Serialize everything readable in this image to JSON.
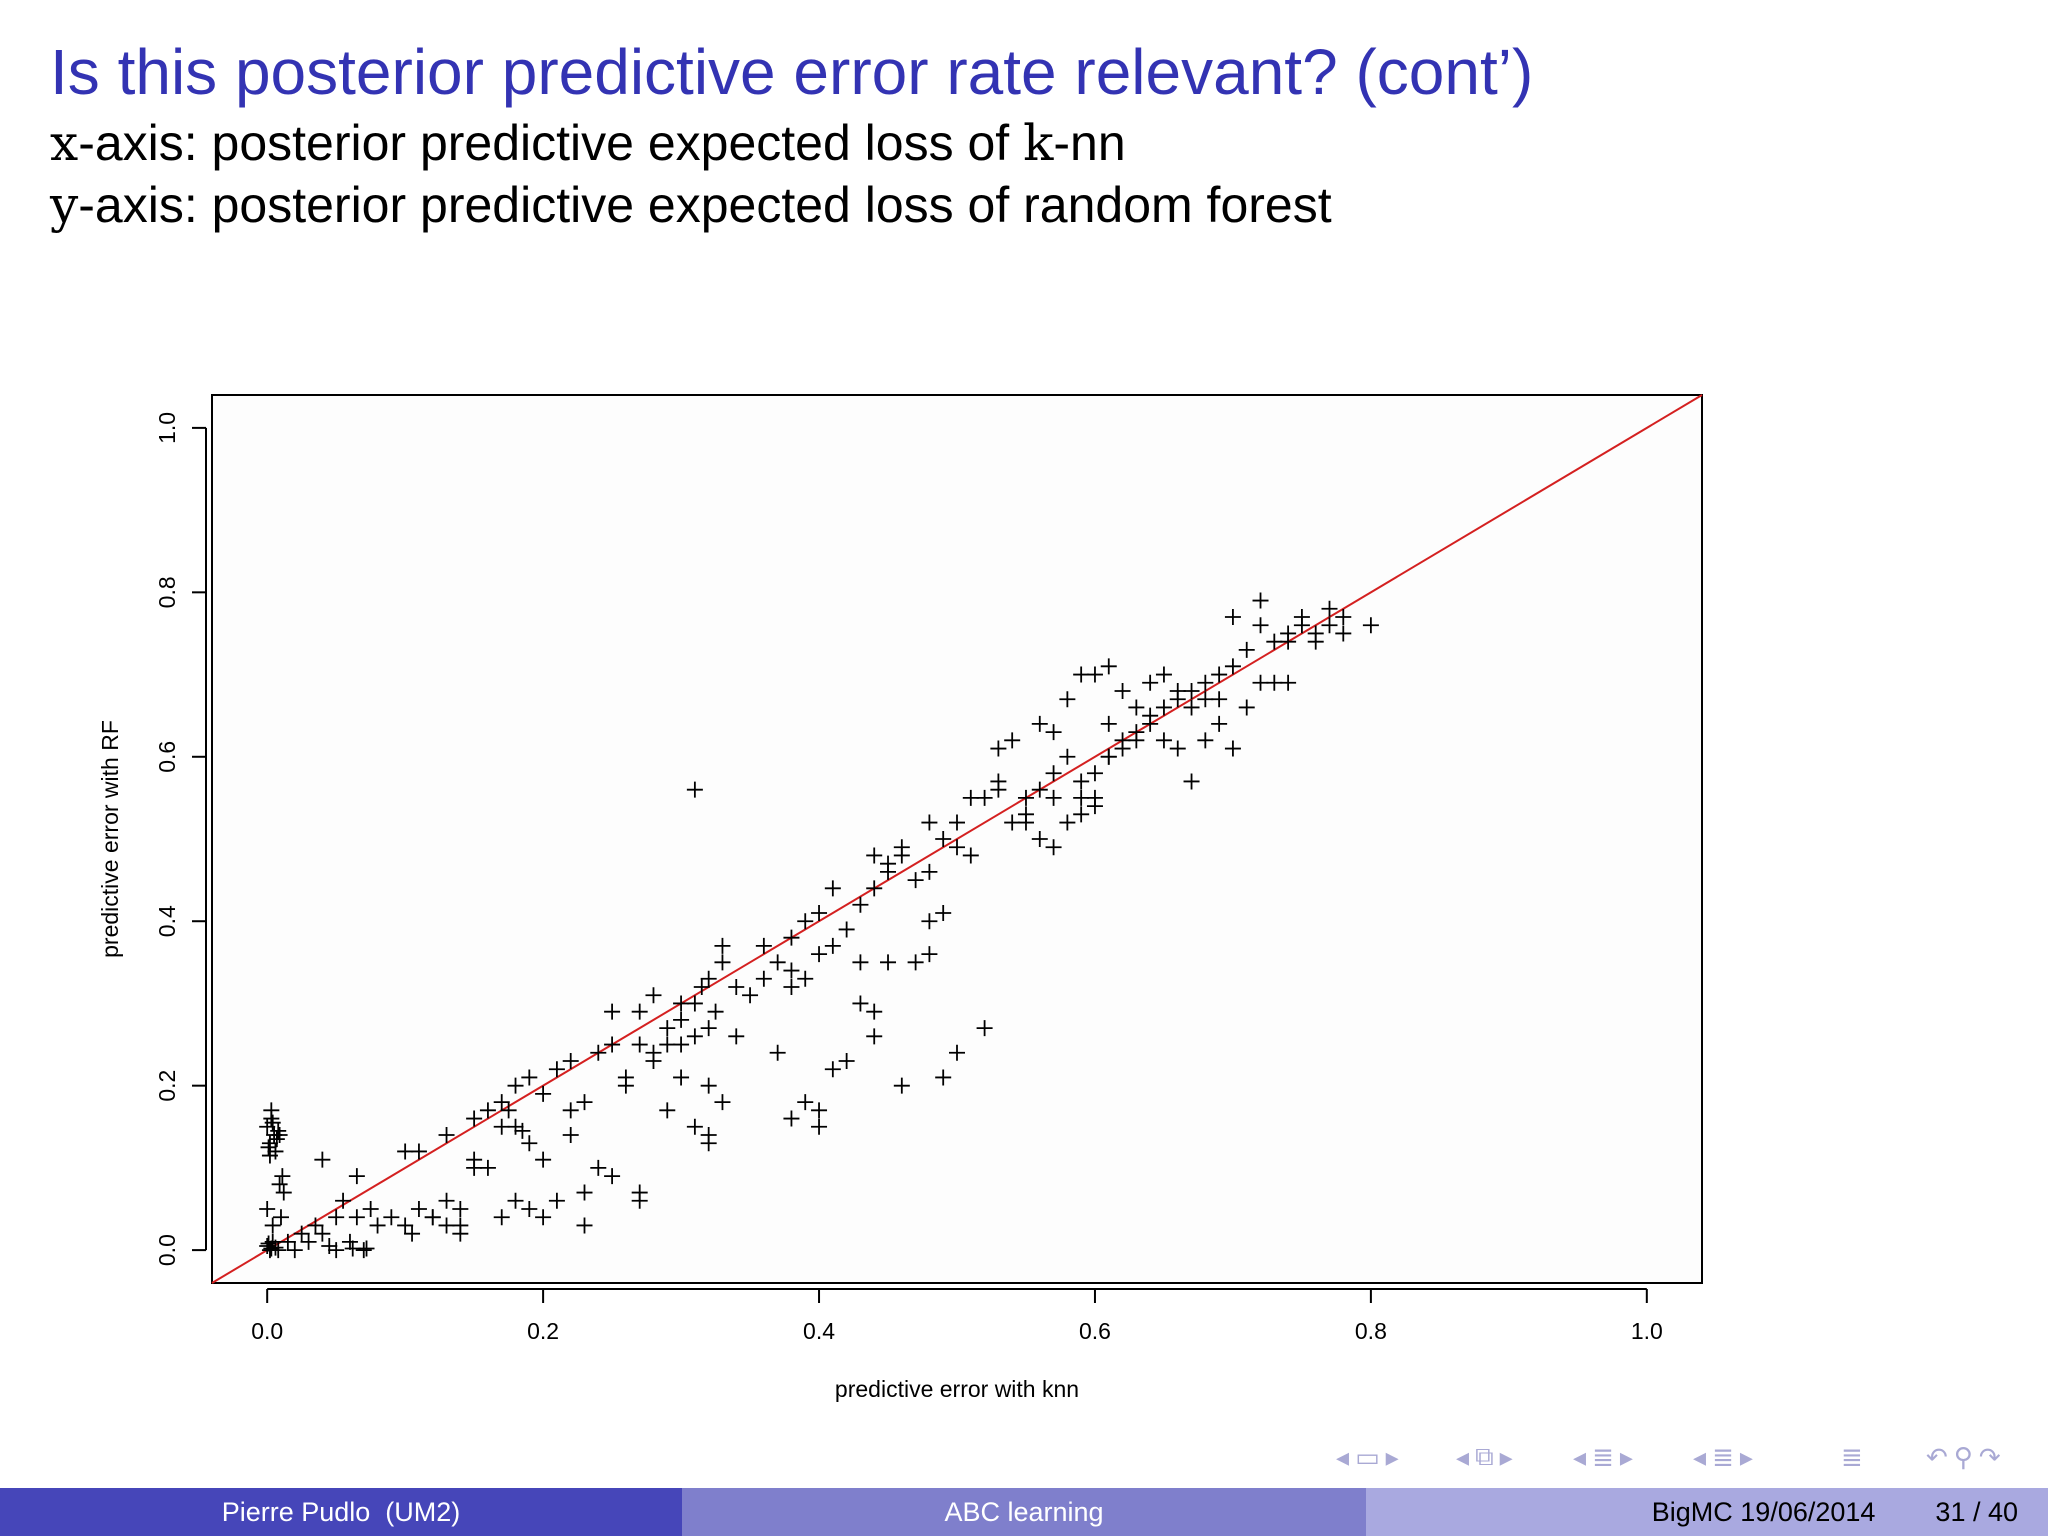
{
  "slide": {
    "title": "Is this posterior predictive error rate relevant? (cont’)",
    "line1_var": "x",
    "line1_text": "-axis: posterior predictive expected loss of ",
    "line1_k": "k",
    "line1_end": "-nn",
    "line2_var": "y",
    "line2_text": "-axis: posterior predictive expected loss of random forest"
  },
  "footer": {
    "author": "Pierre Pudlo  (UM2)",
    "talk": "ABC learning",
    "event": "BigMC 19/06/2014",
    "page": "31 / 40"
  },
  "nav": {
    "frame_icons": [
      "triangle-left-icon",
      "frame-icon",
      "triangle-right-icon"
    ],
    "subsection_icons": [
      "triangle-left-icon",
      "subsection-icon",
      "triangle-right-icon"
    ],
    "section_icons": [
      "triangle-left-icon",
      "section-icon",
      "triangle-right-icon"
    ],
    "subsubsection_icons": [
      "triangle-left-icon",
      "subsubsection-icon",
      "triangle-right-icon"
    ],
    "extra_icons": [
      "list-icon",
      "undo-icon",
      "search-icon",
      "redo-icon"
    ]
  },
  "chart_data": {
    "type": "scatter",
    "xlabel": "predictive error with knn",
    "ylabel": "predictive error with RF",
    "xlim": [
      -0.04,
      1.04
    ],
    "ylim": [
      -0.04,
      1.04
    ],
    "xticks": [
      "0.0",
      "0.2",
      "0.4",
      "0.6",
      "0.8",
      "1.0"
    ],
    "yticks": [
      "0.0",
      "0.2",
      "0.4",
      "0.6",
      "0.8",
      "1.0"
    ],
    "reference_line": {
      "from": [
        -0.04,
        -0.04
      ],
      "to": [
        1.04,
        1.04
      ],
      "color": "#d42020"
    },
    "marker": "+",
    "points": [
      [
        0.0,
        0.005
      ],
      [
        0.002,
        0.0
      ],
      [
        0.004,
        0.01
      ],
      [
        0.006,
        0.003
      ],
      [
        0.001,
        0.008
      ],
      [
        0.008,
        0.0
      ],
      [
        0.003,
        0.002
      ],
      [
        0.0,
        0.05
      ],
      [
        0.01,
        0.04
      ],
      [
        0.012,
        0.07
      ],
      [
        0.011,
        0.09
      ],
      [
        0.009,
        0.08
      ],
      [
        0.004,
        0.03
      ],
      [
        0.0,
        0.15
      ],
      [
        0.003,
        0.16
      ],
      [
        0.005,
        0.14
      ],
      [
        0.002,
        0.13
      ],
      [
        0.006,
        0.12
      ],
      [
        0.004,
        0.155
      ],
      [
        0.008,
        0.145
      ],
      [
        0.001,
        0.125
      ],
      [
        0.007,
        0.135
      ],
      [
        0.003,
        0.17
      ],
      [
        0.009,
        0.14
      ],
      [
        0.002,
        0.115
      ],
      [
        0.02,
        0.0
      ],
      [
        0.03,
        0.01
      ],
      [
        0.04,
        0.02
      ],
      [
        0.05,
        0.0
      ],
      [
        0.06,
        0.01
      ],
      [
        0.07,
        0.0
      ],
      [
        0.035,
        0.03
      ],
      [
        0.045,
        0.005
      ],
      [
        0.055,
        0.06
      ],
      [
        0.065,
        0.04
      ],
      [
        0.075,
        0.05
      ],
      [
        0.08,
        0.03
      ],
      [
        0.09,
        0.04
      ],
      [
        0.1,
        0.03
      ],
      [
        0.105,
        0.02
      ],
      [
        0.11,
        0.05
      ],
      [
        0.12,
        0.04
      ],
      [
        0.065,
        0.09
      ],
      [
        0.04,
        0.11
      ],
      [
        0.025,
        0.02
      ],
      [
        0.015,
        0.01
      ],
      [
        0.05,
        0.04
      ],
      [
        0.062,
        0.002
      ],
      [
        0.072,
        0.002
      ],
      [
        0.1,
        0.12
      ],
      [
        0.11,
        0.12
      ],
      [
        0.13,
        0.14
      ],
      [
        0.15,
        0.16
      ],
      [
        0.16,
        0.17
      ],
      [
        0.17,
        0.18
      ],
      [
        0.18,
        0.2
      ],
      [
        0.19,
        0.21
      ],
      [
        0.2,
        0.19
      ],
      [
        0.21,
        0.22
      ],
      [
        0.22,
        0.23
      ],
      [
        0.17,
        0.15
      ],
      [
        0.18,
        0.15
      ],
      [
        0.19,
        0.13
      ],
      [
        0.2,
        0.11
      ],
      [
        0.15,
        0.1
      ],
      [
        0.13,
        0.06
      ],
      [
        0.14,
        0.05
      ],
      [
        0.15,
        0.11
      ],
      [
        0.16,
        0.1
      ],
      [
        0.17,
        0.04
      ],
      [
        0.18,
        0.06
      ],
      [
        0.19,
        0.05
      ],
      [
        0.2,
        0.04
      ],
      [
        0.21,
        0.06
      ],
      [
        0.22,
        0.14
      ],
      [
        0.23,
        0.07
      ],
      [
        0.24,
        0.1
      ],
      [
        0.25,
        0.09
      ],
      [
        0.27,
        0.06
      ],
      [
        0.27,
        0.07
      ],
      [
        0.23,
        0.03
      ],
      [
        0.14,
        0.02
      ],
      [
        0.14,
        0.03
      ],
      [
        0.12,
        0.04
      ],
      [
        0.13,
        0.03
      ],
      [
        0.175,
        0.17
      ],
      [
        0.185,
        0.145
      ],
      [
        0.22,
        0.17
      ],
      [
        0.23,
        0.18
      ],
      [
        0.24,
        0.24
      ],
      [
        0.25,
        0.25
      ],
      [
        0.26,
        0.2
      ],
      [
        0.27,
        0.25
      ],
      [
        0.28,
        0.23
      ],
      [
        0.29,
        0.25
      ],
      [
        0.3,
        0.28
      ],
      [
        0.31,
        0.3
      ],
      [
        0.32,
        0.33
      ],
      [
        0.33,
        0.35
      ],
      [
        0.34,
        0.32
      ],
      [
        0.35,
        0.31
      ],
      [
        0.36,
        0.33
      ],
      [
        0.37,
        0.35
      ],
      [
        0.25,
        0.29
      ],
      [
        0.27,
        0.29
      ],
      [
        0.29,
        0.27
      ],
      [
        0.3,
        0.25
      ],
      [
        0.31,
        0.26
      ],
      [
        0.32,
        0.27
      ],
      [
        0.29,
        0.17
      ],
      [
        0.31,
        0.15
      ],
      [
        0.32,
        0.14
      ],
      [
        0.32,
        0.13
      ],
      [
        0.33,
        0.18
      ],
      [
        0.32,
        0.2
      ],
      [
        0.3,
        0.21
      ],
      [
        0.28,
        0.31
      ],
      [
        0.31,
        0.56
      ],
      [
        0.33,
        0.37
      ],
      [
        0.36,
        0.37
      ],
      [
        0.38,
        0.34
      ],
      [
        0.38,
        0.32
      ],
      [
        0.26,
        0.21
      ],
      [
        0.28,
        0.24
      ],
      [
        0.3,
        0.3
      ],
      [
        0.315,
        0.32
      ],
      [
        0.325,
        0.29
      ],
      [
        0.34,
        0.26
      ],
      [
        0.37,
        0.24
      ],
      [
        0.38,
        0.16
      ],
      [
        0.39,
        0.18
      ],
      [
        0.4,
        0.15
      ],
      [
        0.4,
        0.17
      ],
      [
        0.41,
        0.22
      ],
      [
        0.42,
        0.23
      ],
      [
        0.43,
        0.3
      ],
      [
        0.44,
        0.26
      ],
      [
        0.44,
        0.29
      ],
      [
        0.46,
        0.2
      ],
      [
        0.38,
        0.38
      ],
      [
        0.39,
        0.4
      ],
      [
        0.4,
        0.41
      ],
      [
        0.41,
        0.44
      ],
      [
        0.42,
        0.39
      ],
      [
        0.43,
        0.42
      ],
      [
        0.44,
        0.44
      ],
      [
        0.45,
        0.46
      ],
      [
        0.46,
        0.48
      ],
      [
        0.47,
        0.45
      ],
      [
        0.48,
        0.46
      ],
      [
        0.49,
        0.5
      ],
      [
        0.5,
        0.52
      ],
      [
        0.51,
        0.48
      ],
      [
        0.39,
        0.33
      ],
      [
        0.4,
        0.36
      ],
      [
        0.41,
        0.37
      ],
      [
        0.43,
        0.35
      ],
      [
        0.45,
        0.35
      ],
      [
        0.47,
        0.35
      ],
      [
        0.48,
        0.4
      ],
      [
        0.49,
        0.41
      ],
      [
        0.48,
        0.36
      ],
      [
        0.49,
        0.21
      ],
      [
        0.5,
        0.24
      ],
      [
        0.52,
        0.27
      ],
      [
        0.44,
        0.48
      ],
      [
        0.45,
        0.47
      ],
      [
        0.46,
        0.49
      ],
      [
        0.48,
        0.52
      ],
      [
        0.5,
        0.49
      ],
      [
        0.51,
        0.55
      ],
      [
        0.52,
        0.55
      ],
      [
        0.53,
        0.56
      ],
      [
        0.54,
        0.52
      ],
      [
        0.55,
        0.53
      ],
      [
        0.56,
        0.56
      ],
      [
        0.57,
        0.58
      ],
      [
        0.58,
        0.6
      ],
      [
        0.59,
        0.57
      ],
      [
        0.6,
        0.54
      ],
      [
        0.61,
        0.6
      ],
      [
        0.62,
        0.62
      ],
      [
        0.63,
        0.63
      ],
      [
        0.64,
        0.65
      ],
      [
        0.65,
        0.66
      ],
      [
        0.66,
        0.67
      ],
      [
        0.67,
        0.68
      ],
      [
        0.68,
        0.69
      ],
      [
        0.69,
        0.7
      ],
      [
        0.7,
        0.71
      ],
      [
        0.71,
        0.73
      ],
      [
        0.72,
        0.76
      ],
      [
        0.73,
        0.74
      ],
      [
        0.74,
        0.75
      ],
      [
        0.75,
        0.77
      ],
      [
        0.76,
        0.74
      ],
      [
        0.77,
        0.76
      ],
      [
        0.78,
        0.77
      ],
      [
        0.53,
        0.61
      ],
      [
        0.54,
        0.62
      ],
      [
        0.56,
        0.64
      ],
      [
        0.57,
        0.63
      ],
      [
        0.58,
        0.67
      ],
      [
        0.59,
        0.7
      ],
      [
        0.6,
        0.7
      ],
      [
        0.61,
        0.71
      ],
      [
        0.55,
        0.52
      ],
      [
        0.56,
        0.5
      ],
      [
        0.57,
        0.49
      ],
      [
        0.58,
        0.52
      ],
      [
        0.59,
        0.55
      ],
      [
        0.6,
        0.58
      ],
      [
        0.61,
        0.6
      ],
      [
        0.62,
        0.61
      ],
      [
        0.63,
        0.62
      ],
      [
        0.64,
        0.64
      ],
      [
        0.65,
        0.62
      ],
      [
        0.66,
        0.61
      ],
      [
        0.67,
        0.57
      ],
      [
        0.68,
        0.62
      ],
      [
        0.69,
        0.64
      ],
      [
        0.7,
        0.61
      ],
      [
        0.71,
        0.66
      ],
      [
        0.72,
        0.69
      ],
      [
        0.73,
        0.69
      ],
      [
        0.74,
        0.74
      ],
      [
        0.75,
        0.76
      ],
      [
        0.76,
        0.75
      ],
      [
        0.77,
        0.78
      ],
      [
        0.78,
        0.75
      ],
      [
        0.8,
        0.76
      ],
      [
        0.72,
        0.79
      ],
      [
        0.7,
        0.77
      ],
      [
        0.74,
        0.69
      ],
      [
        0.62,
        0.68
      ],
      [
        0.63,
        0.66
      ],
      [
        0.64,
        0.69
      ],
      [
        0.65,
        0.7
      ],
      [
        0.66,
        0.68
      ],
      [
        0.67,
        0.66
      ],
      [
        0.68,
        0.67
      ],
      [
        0.69,
        0.67
      ],
      [
        0.53,
        0.57
      ],
      [
        0.55,
        0.55
      ],
      [
        0.57,
        0.55
      ],
      [
        0.59,
        0.53
      ],
      [
        0.6,
        0.55
      ],
      [
        0.61,
        0.64
      ]
    ]
  }
}
